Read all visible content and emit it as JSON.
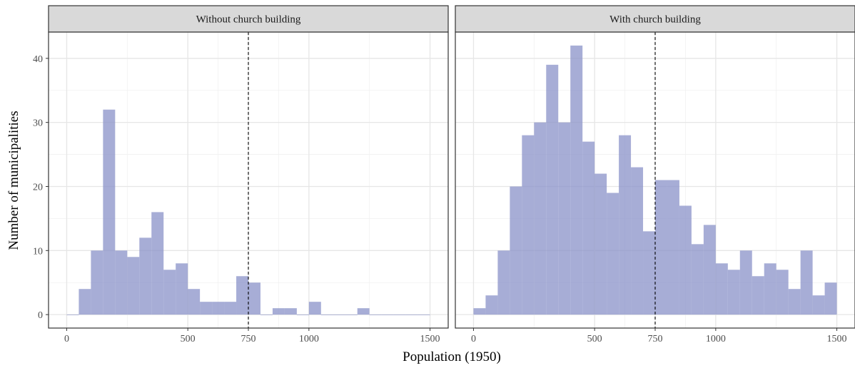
{
  "chart_data": {
    "type": "bar",
    "subtype": "faceted-histogram",
    "xlabel": "Population (1950)",
    "ylabel": "Number of municipalities",
    "xlim": [
      -75,
      1575
    ],
    "ylim": [
      -2.1,
      44.1
    ],
    "x_ticks": [
      0,
      500,
      750,
      1000,
      1500
    ],
    "y_ticks": [
      0,
      10,
      20,
      30,
      40
    ],
    "bin_width": 50,
    "bin_starts": [
      0,
      50,
      100,
      150,
      200,
      250,
      300,
      350,
      400,
      450,
      500,
      550,
      600,
      650,
      700,
      750,
      800,
      850,
      900,
      950,
      1000,
      1050,
      1100,
      1150,
      1200,
      1250,
      1300,
      1350,
      1400,
      1450
    ],
    "reference_line": {
      "x": 750,
      "style": "dashed",
      "color": "#000000"
    },
    "fill_color": "#8a92c8",
    "fill_opacity": 0.75,
    "grid": true,
    "legend": "none",
    "series": [
      {
        "name": "Without church building",
        "values": [
          0,
          4,
          10,
          32,
          10,
          9,
          12,
          16,
          7,
          8,
          4,
          2,
          2,
          2,
          6,
          5,
          0,
          1,
          1,
          0,
          2,
          0,
          0,
          0,
          1,
          0,
          0,
          0,
          0,
          0
        ]
      },
      {
        "name": "With church building",
        "values": [
          1,
          3,
          10,
          20,
          28,
          30,
          39,
          30,
          42,
          27,
          22,
          19,
          28,
          23,
          13,
          21,
          21,
          17,
          11,
          14,
          8,
          7,
          10,
          6,
          8,
          7,
          4,
          10,
          3,
          5
        ]
      }
    ]
  }
}
